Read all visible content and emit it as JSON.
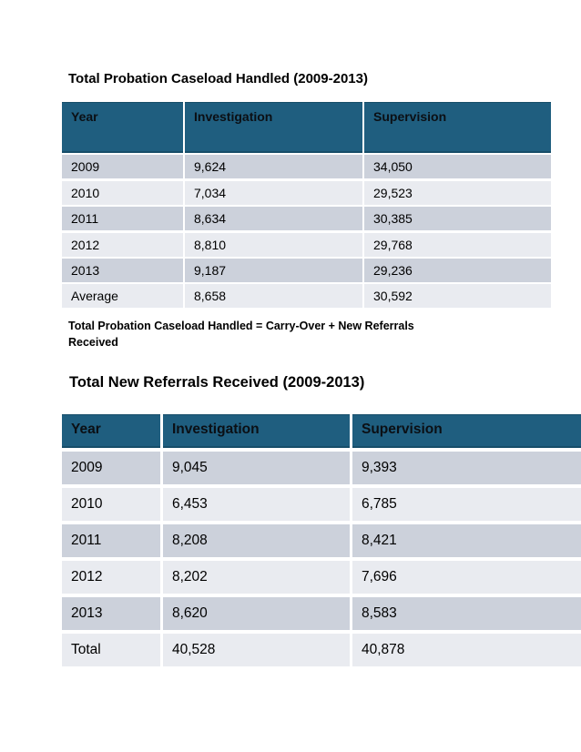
{
  "colors": {
    "header_bg": "#1F5E7F",
    "header_border": "#174E69",
    "header_text": "#0b0f14",
    "row_dark": "#CCD1DB",
    "row_light": "#E9EBF0",
    "text": "#000000",
    "page_bg": "#ffffff"
  },
  "table1": {
    "title": "Total Probation Caseload Handled (2009-2013)",
    "columns": [
      "Year",
      "Investigation",
      "Supervision"
    ],
    "rows": [
      [
        "2009",
        "9,624",
        "34,050"
      ],
      [
        "2010",
        "7,034",
        "29,523"
      ],
      [
        "2011",
        "8,634",
        "30,385"
      ],
      [
        "2012",
        "8,810",
        "29,768"
      ],
      [
        "2013",
        "9,187",
        "29,236"
      ],
      [
        "Average",
        "8,658",
        "30,592"
      ]
    ],
    "note_lines": [
      "Total Probation Caseload Handled = Carry-Over + New Referrals",
      "Received"
    ]
  },
  "table2": {
    "title": "Total New Referrals Received (2009-2013)",
    "columns": [
      "Year",
      "Investigation",
      "Supervision"
    ],
    "rows": [
      [
        "2009",
        "9,045",
        "9,393"
      ],
      [
        "2010",
        "6,453",
        "6,785"
      ],
      [
        "2011",
        "8,208",
        "8,421"
      ],
      [
        "2012",
        "8,202",
        "7,696"
      ],
      [
        "2013",
        "8,620",
        "8,583"
      ],
      [
        "Total",
        "40,528",
        "40,878"
      ]
    ]
  },
  "chart_data": [
    {
      "type": "table",
      "title": "Total Probation Caseload Handled (2009-2013)",
      "categories": [
        "2009",
        "2010",
        "2011",
        "2012",
        "2013",
        "Average"
      ],
      "series": [
        {
          "name": "Investigation",
          "values": [
            9624,
            7034,
            8634,
            8810,
            9187,
            8658
          ]
        },
        {
          "name": "Supervision",
          "values": [
            34050,
            29523,
            30385,
            29768,
            29236,
            30592
          ]
        }
      ]
    },
    {
      "type": "table",
      "title": "Total New Referrals Received (2009-2013)",
      "categories": [
        "2009",
        "2010",
        "2011",
        "2012",
        "2013",
        "Total"
      ],
      "series": [
        {
          "name": "Investigation",
          "values": [
            9045,
            6453,
            8208,
            8202,
            8620,
            40528
          ]
        },
        {
          "name": "Supervision",
          "values": [
            9393,
            6785,
            8421,
            7696,
            8583,
            40878
          ]
        }
      ]
    }
  ]
}
